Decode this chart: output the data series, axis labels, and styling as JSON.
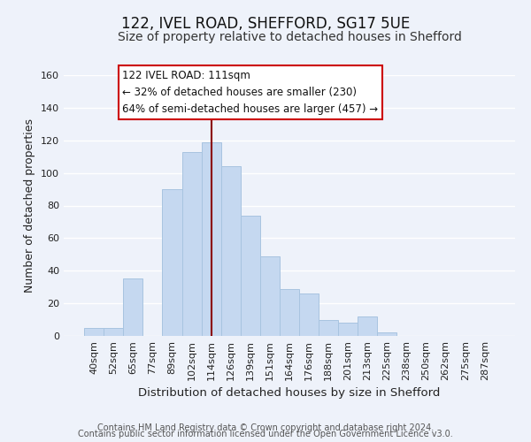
{
  "title": "122, IVEL ROAD, SHEFFORD, SG17 5UE",
  "subtitle": "Size of property relative to detached houses in Shefford",
  "xlabel": "Distribution of detached houses by size in Shefford",
  "ylabel": "Number of detached properties",
  "bar_labels": [
    "40sqm",
    "52sqm",
    "65sqm",
    "77sqm",
    "89sqm",
    "102sqm",
    "114sqm",
    "126sqm",
    "139sqm",
    "151sqm",
    "164sqm",
    "176sqm",
    "188sqm",
    "201sqm",
    "213sqm",
    "225sqm",
    "238sqm",
    "250sqm",
    "262sqm",
    "275sqm",
    "287sqm"
  ],
  "bar_values": [
    5,
    5,
    35,
    0,
    90,
    113,
    119,
    104,
    74,
    49,
    29,
    26,
    10,
    8,
    12,
    2,
    0,
    0,
    0,
    0,
    0
  ],
  "bar_color": "#c5d8f0",
  "bar_edge_color": "#a8c4e0",
  "ylim": [
    0,
    160
  ],
  "yticks": [
    0,
    20,
    40,
    60,
    80,
    100,
    120,
    140,
    160
  ],
  "vline_x": 6.0,
  "vline_color": "#8b0000",
  "annotation_title": "122 IVEL ROAD: 111sqm",
  "annotation_line1": "← 32% of detached houses are smaller (230)",
  "annotation_line2": "64% of semi-detached houses are larger (457) →",
  "footer1": "Contains HM Land Registry data © Crown copyright and database right 2024.",
  "footer2": "Contains public sector information licensed under the Open Government Licence v3.0.",
  "background_color": "#eef2fa",
  "grid_color": "#d8e0ee",
  "title_fontsize": 12,
  "subtitle_fontsize": 10,
  "xlabel_fontsize": 9.5,
  "ylabel_fontsize": 9,
  "footer_fontsize": 7,
  "tick_fontsize": 8
}
